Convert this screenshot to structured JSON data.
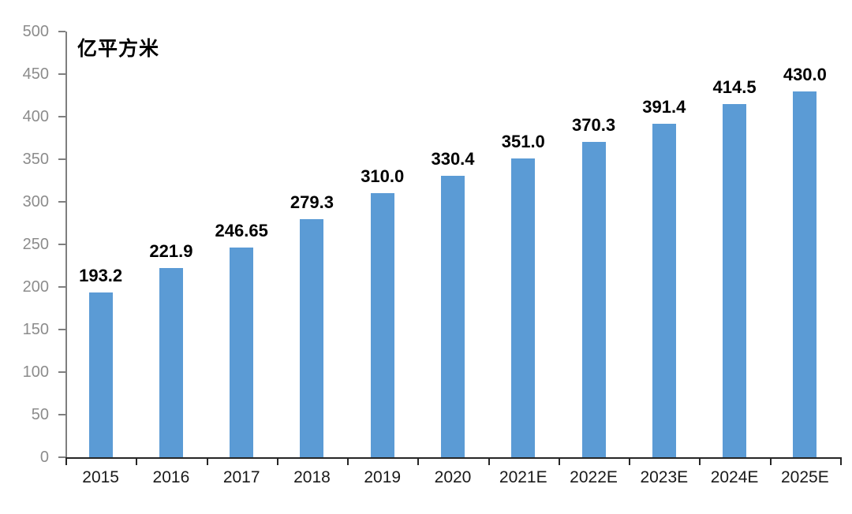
{
  "chart_data": {
    "type": "bar",
    "title": "",
    "unit_label": "亿平方米",
    "categories": [
      "2015",
      "2016",
      "2017",
      "2018",
      "2019",
      "2020",
      "2021E",
      "2022E",
      "2023E",
      "2024E",
      "2025E"
    ],
    "values": [
      193.2,
      221.9,
      246.65,
      279.3,
      310.0,
      330.4,
      351.0,
      370.3,
      391.4,
      414.5,
      430.0
    ],
    "value_labels": [
      "193.2",
      "221.9",
      "246.65",
      "279.3",
      "310.0",
      "330.4",
      "351.0",
      "370.3",
      "391.4",
      "414.5",
      "430.0"
    ],
    "xlabel": "",
    "ylabel": "",
    "ylim": [
      0,
      500
    ],
    "y_ticks": [
      0,
      50,
      100,
      150,
      200,
      250,
      300,
      350,
      400,
      450,
      500
    ],
    "grid": false,
    "legend": "none",
    "bar_color": "#5B9BD5",
    "y_axis_color": "#7F7F7F",
    "x_axis_color": "#262626",
    "y_tick_label_color": "#8C8C8C",
    "category_label_color": "#1A1A1A",
    "value_label_color": "#000000"
  }
}
